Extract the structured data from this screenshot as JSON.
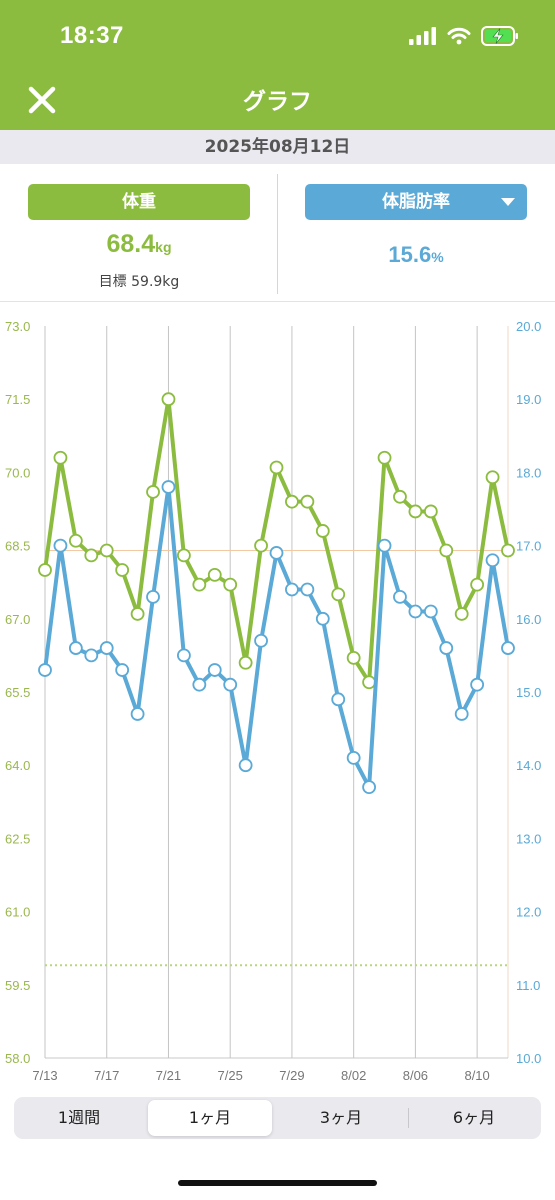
{
  "status": {
    "time": "18:37",
    "icons": [
      "signal-icon",
      "wifi-icon",
      "battery-charging-icon"
    ]
  },
  "nav": {
    "title": "グラフ",
    "close_icon": "close-icon"
  },
  "date": "2025年08月12日",
  "summary": {
    "weight_label": "体重",
    "weight_value": "68.4",
    "weight_unit": "kg",
    "goal_text": "目標 59.9kg",
    "fat_label": "体脂肪率",
    "fat_value": "15.6",
    "fat_unit": "%"
  },
  "colors": {
    "accent_green": "#8cbc3f",
    "accent_blue": "#5aa9d6",
    "goal_line": "#b9d77a",
    "current_line": "#f3c9a4"
  },
  "chart_data": {
    "type": "line",
    "x": [
      "7/13",
      "7/14",
      "7/15",
      "7/16",
      "7/17",
      "7/18",
      "7/19",
      "7/20",
      "7/21",
      "7/22",
      "7/23",
      "7/24",
      "7/25",
      "7/26",
      "7/27",
      "7/28",
      "7/29",
      "7/30",
      "7/31",
      "8/01",
      "8/02",
      "8/03",
      "8/04",
      "8/05",
      "8/06",
      "8/07",
      "8/08",
      "8/09",
      "8/10",
      "8/11",
      "8/12"
    ],
    "x_tick_labels": [
      "7/13",
      "7/17",
      "7/21",
      "7/25",
      "7/29",
      "8/02",
      "8/06",
      "8/10"
    ],
    "series": [
      {
        "name": "体重",
        "axis": "left",
        "values": [
          68.0,
          70.3,
          68.6,
          68.3,
          68.4,
          68.0,
          67.1,
          69.6,
          71.5,
          68.3,
          67.7,
          67.9,
          67.7,
          66.1,
          68.5,
          70.1,
          69.4,
          69.4,
          68.8,
          67.5,
          66.2,
          65.7,
          70.3,
          69.5,
          69.2,
          69.2,
          68.4,
          67.1,
          67.7,
          69.9,
          68.4
        ]
      },
      {
        "name": "体脂肪率",
        "axis": "right",
        "values": [
          15.3,
          17.0,
          15.6,
          15.5,
          15.6,
          15.3,
          14.7,
          16.3,
          17.8,
          15.5,
          15.1,
          15.3,
          15.1,
          14.0,
          15.7,
          16.9,
          16.4,
          16.4,
          16.0,
          14.9,
          14.1,
          13.7,
          17.0,
          16.3,
          16.1,
          16.1,
          15.6,
          14.7,
          15.1,
          16.8,
          15.6
        ]
      }
    ],
    "y_left_ticks": [
      "73.0",
      "71.5",
      "70.0",
      "68.5",
      "67.0",
      "65.5",
      "64.0",
      "62.5",
      "61.0",
      "59.5",
      "58.0"
    ],
    "y_right_ticks": [
      "20.0",
      "19.0",
      "18.0",
      "17.0",
      "16.0",
      "15.0",
      "14.0",
      "13.0",
      "12.0",
      "11.0",
      "10.0"
    ],
    "ylim_left": [
      58.0,
      73.0
    ],
    "ylim_right": [
      10.0,
      20.0
    ],
    "goal_value": 59.9,
    "current_value": 68.4,
    "grid": "vertical"
  },
  "periods": [
    {
      "label": "1週間",
      "active": false
    },
    {
      "label": "1ヶ月",
      "active": true
    },
    {
      "label": "3ヶ月",
      "active": false
    },
    {
      "label": "6ヶ月",
      "active": false
    }
  ]
}
